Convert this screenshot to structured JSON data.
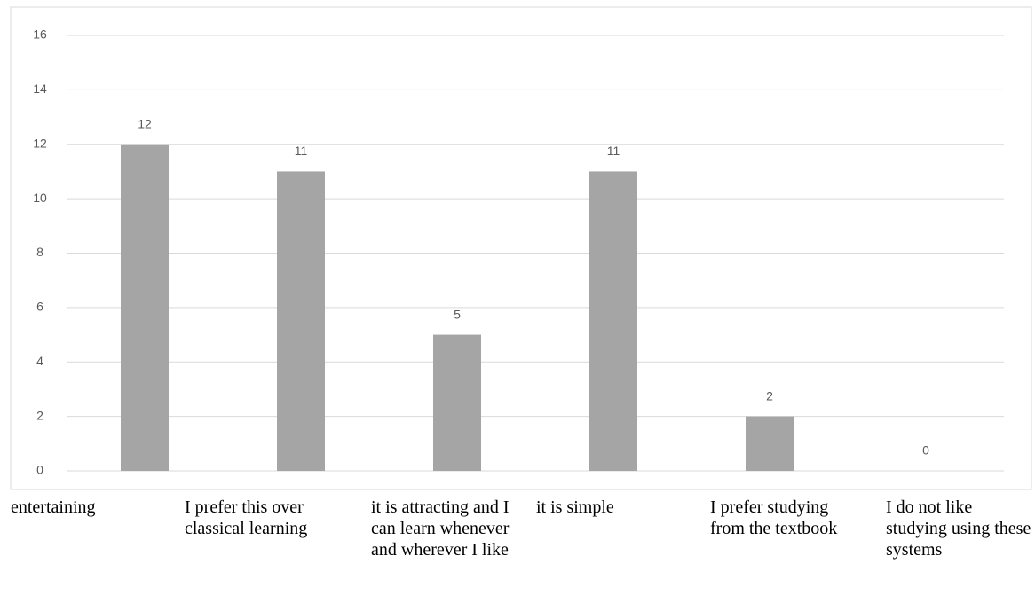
{
  "chart_data": {
    "type": "bar",
    "categories": [
      "entertaining",
      "I prefer this over classical learning",
      "it is attracting and I can learn whenever and wherever I like",
      "it is simple",
      "I prefer studying from the textbook",
      "I do not like studying using these systems"
    ],
    "values": [
      12,
      11,
      5,
      11,
      2,
      0
    ],
    "color": "#a5a5a5",
    "ylim": [
      0,
      16
    ],
    "yticks": [
      0,
      2,
      4,
      6,
      8,
      10,
      12,
      14,
      16
    ],
    "grid": true
  }
}
